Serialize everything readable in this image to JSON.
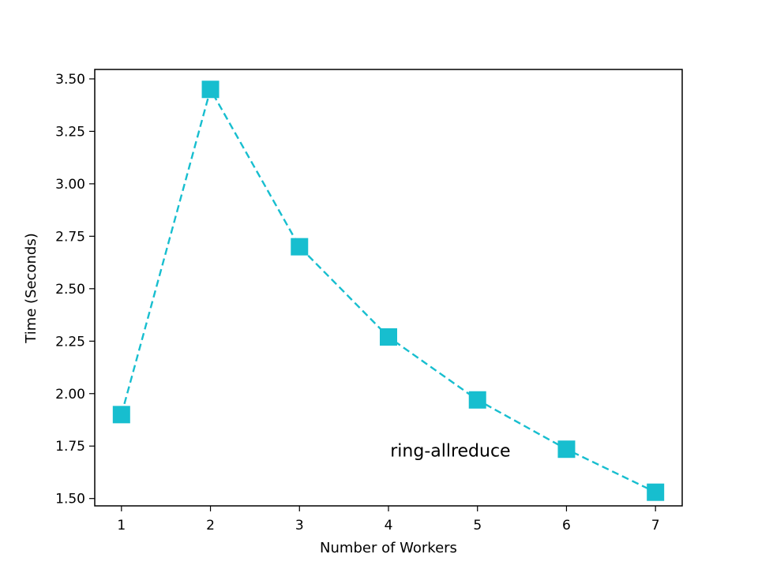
{
  "chart_data": {
    "type": "line",
    "title": "",
    "xlabel": "Number of Workers",
    "ylabel": "Time (Seconds)",
    "x": [
      1,
      2,
      3,
      4,
      5,
      6,
      7
    ],
    "xticks": [
      "1",
      "2",
      "3",
      "4",
      "5",
      "6",
      "7"
    ],
    "yticks": [
      "1.50",
      "1.75",
      "2.00",
      "2.25",
      "2.50",
      "2.75",
      "3.00",
      "3.25",
      "3.50"
    ],
    "xlim": [
      0.7,
      7.3
    ],
    "ylim": [
      1.465,
      3.545
    ],
    "series": [
      {
        "values": [
          1.9,
          3.45,
          2.7,
          2.27,
          1.97,
          1.735,
          1.53
        ],
        "color": "#17becf",
        "line_style": "dashed",
        "marker": "square"
      }
    ],
    "annotations": [
      {
        "text": "ring-allreduce",
        "x": 4.02,
        "y": 1.73
      }
    ],
    "grid": false
  }
}
